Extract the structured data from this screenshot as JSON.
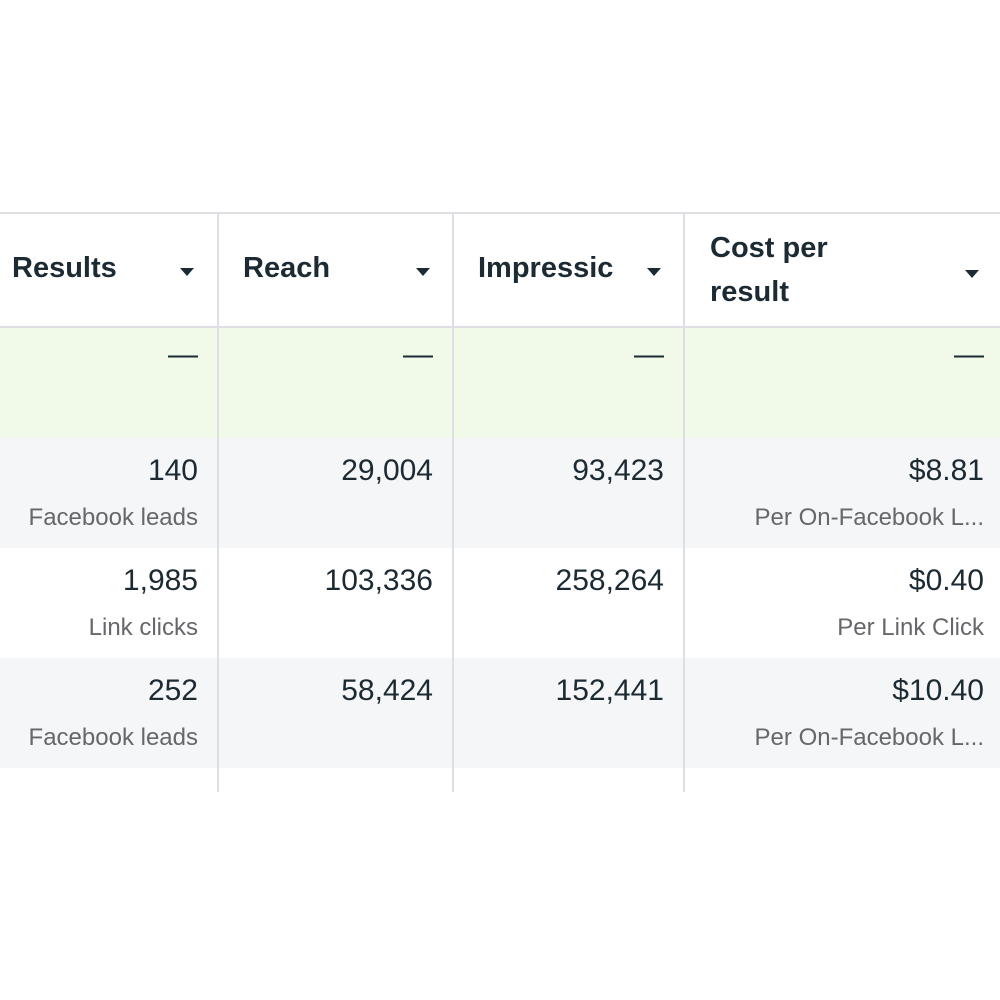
{
  "columns": [
    {
      "label": "Results",
      "icon": "caret-down-icon"
    },
    {
      "label": "Reach",
      "icon": "caret-down-icon"
    },
    {
      "label": "Impressic",
      "icon": "caret-down-icon"
    },
    {
      "label": "Cost per result",
      "icon": "caret-down-icon"
    }
  ],
  "cost_header": {
    "line1": "Cost per",
    "line2": "result"
  },
  "summary_row": {
    "results": "—",
    "reach": "—",
    "impressions": "—",
    "cost": "—"
  },
  "rows": [
    {
      "results": "140",
      "results_sub": "Facebook leads",
      "reach": "29,004",
      "impressions": "93,423",
      "cost": "$8.81",
      "cost_sub": "Per On-Facebook L..."
    },
    {
      "results": "1,985",
      "results_sub": "Link clicks",
      "reach": "103,336",
      "impressions": "258,264",
      "cost": "$0.40",
      "cost_sub": "Per Link Click"
    },
    {
      "results": "252",
      "results_sub": "Facebook leads",
      "reach": "58,424",
      "impressions": "152,441",
      "cost": "$10.40",
      "cost_sub": "Per On-Facebook L..."
    }
  ],
  "colors": {
    "summary_bg": "#f1f9e9",
    "alt_row_bg": "#f5f6f7",
    "border": "#dddfe2",
    "text": "#1c2b33",
    "subtext": "#65676b"
  }
}
